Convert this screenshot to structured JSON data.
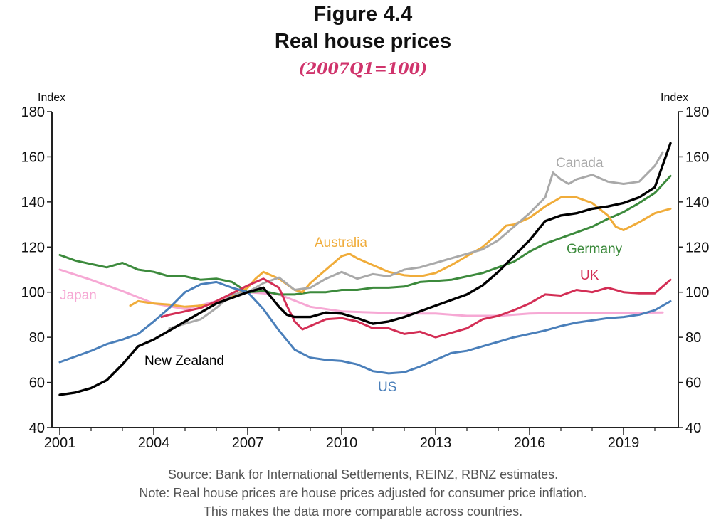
{
  "title": "Figure 4.4",
  "subtitle": "Real house prices",
  "base_note": "(2007Q1=100)",
  "notes": [
    "Source: Bank for International Settlements, REINZ, RBNZ estimates.",
    "Note: Real house prices are house prices adjusted for consumer price inflation.",
    "This makes the data more comparable across countries."
  ],
  "chart_data": {
    "type": "line",
    "ylabel_left": "Index",
    "ylabel_right": "Index",
    "ylim": [
      40,
      180
    ],
    "yticks": [
      40,
      60,
      80,
      100,
      120,
      140,
      160,
      180
    ],
    "xlim": [
      2000.75,
      2020.75
    ],
    "xticks": [
      2001,
      2004,
      2007,
      2010,
      2013,
      2016,
      2019
    ],
    "xtick_labels": [
      "2001",
      "2004",
      "2007",
      "2010",
      "2013",
      "2016",
      "2019"
    ],
    "grid": false,
    "series": [
      {
        "name": "Japan",
        "color": "#f6a8d4",
        "x": [
          2001,
          2002,
          2003,
          2004,
          2005,
          2006,
          2007,
          2008,
          2009,
          2010,
          2011,
          2012,
          2013,
          2014,
          2015,
          2016,
          2017,
          2018,
          2019,
          2020.25
        ],
        "y": [
          110,
          105.5,
          100.5,
          95,
          92.5,
          96,
          100,
          99,
          93.5,
          91.5,
          91,
          90.5,
          90.5,
          89.5,
          89.5,
          90.5,
          90.8,
          90.6,
          90.8,
          91
        ]
      },
      {
        "name": "Germany",
        "color": "#3c8a3c",
        "x": [
          2001,
          2001.5,
          2002,
          2002.5,
          2003,
          2003.5,
          2004,
          2004.5,
          2005,
          2005.5,
          2006,
          2006.5,
          2007,
          2007.5,
          2008,
          2008.5,
          2009,
          2009.5,
          2010,
          2010.5,
          2011,
          2011.5,
          2012,
          2012.5,
          2013,
          2013.5,
          2014,
          2014.5,
          2015,
          2015.5,
          2016,
          2016.5,
          2017,
          2017.5,
          2018,
          2018.5,
          2019,
          2019.5,
          2020,
          2020.5
        ],
        "y": [
          116.5,
          114,
          112.5,
          111,
          113,
          110,
          109,
          107,
          107,
          105.5,
          106,
          104.5,
          100,
          100.5,
          99,
          99,
          100,
          100,
          101,
          101,
          102,
          102,
          102.5,
          104.5,
          105,
          105.5,
          107,
          108.5,
          111,
          113.5,
          118,
          121.5,
          124,
          126.5,
          129,
          132.5,
          135.5,
          139.5,
          144,
          151.5
        ]
      },
      {
        "name": "Australia",
        "color": "#f0ac3a",
        "x": [
          2003.25,
          2003.5,
          2004,
          2004.5,
          2005,
          2005.5,
          2006,
          2006.5,
          2007,
          2007.25,
          2007.5,
          2008,
          2008.5,
          2008.75,
          2009,
          2009.5,
          2010,
          2010.25,
          2010.5,
          2011,
          2011.5,
          2012,
          2012.5,
          2013,
          2013.5,
          2014,
          2014.5,
          2015,
          2015.25,
          2015.5,
          2016,
          2016.5,
          2017,
          2017.5,
          2018,
          2018.5,
          2018.75,
          2019,
          2019.5,
          2020,
          2020.5
        ],
        "y": [
          94,
          96,
          95,
          94.5,
          93.5,
          94,
          95,
          98,
          102,
          106,
          109,
          106,
          101,
          100,
          104,
          110,
          116,
          117,
          115,
          112,
          109,
          107.5,
          107,
          108.5,
          112,
          116,
          120,
          126,
          129.5,
          130,
          133,
          138,
          142,
          142,
          139.5,
          134,
          129,
          127.5,
          131,
          135,
          137
        ]
      },
      {
        "name": "Canada",
        "color": "#a9a9a9",
        "x": [
          2004.5,
          2005,
          2005.5,
          2006,
          2006.5,
          2007,
          2007.5,
          2008,
          2008.5,
          2009,
          2009.5,
          2010,
          2010.5,
          2011,
          2011.5,
          2012,
          2012.5,
          2013,
          2013.5,
          2014,
          2014.5,
          2015,
          2015.5,
          2016,
          2016.5,
          2016.75,
          2017,
          2017.25,
          2017.5,
          2018,
          2018.5,
          2019,
          2019.5,
          2020,
          2020.25
        ],
        "y": [
          84,
          86,
          88,
          93,
          99,
          100,
          104,
          106.5,
          101,
          102,
          106,
          109,
          106,
          108,
          107,
          110,
          111,
          113,
          115,
          117,
          119,
          123,
          129,
          135,
          142,
          153,
          150,
          148,
          150,
          152,
          149,
          148,
          149,
          156,
          162
        ]
      },
      {
        "name": "UK",
        "color": "#d32e55",
        "x": [
          2004.25,
          2004.5,
          2005,
          2005.5,
          2006,
          2006.5,
          2007,
          2007.5,
          2008,
          2008.25,
          2008.5,
          2008.75,
          2009,
          2009.5,
          2010,
          2010.5,
          2011,
          2011.5,
          2012,
          2012.5,
          2013,
          2013.5,
          2014,
          2014.5,
          2015,
          2015.5,
          2016,
          2016.5,
          2017,
          2017.5,
          2018,
          2018.5,
          2019,
          2019.5,
          2020,
          2020.5
        ],
        "y": [
          89,
          90,
          91.5,
          93,
          96,
          99.5,
          103,
          106,
          102,
          94,
          87,
          83.5,
          85,
          88,
          88.5,
          87,
          84,
          84,
          81.5,
          82.5,
          80,
          82,
          84,
          88,
          89.5,
          92,
          95,
          99,
          98.5,
          101,
          100,
          102,
          100,
          99.5,
          99.5,
          105.5
        ]
      },
      {
        "name": "US",
        "color": "#4a7fba",
        "x": [
          2001,
          2001.5,
          2002,
          2002.5,
          2003,
          2003.5,
          2004,
          2004.5,
          2005,
          2005.5,
          2006,
          2006.5,
          2007,
          2007.5,
          2008,
          2008.5,
          2009,
          2009.5,
          2010,
          2010.5,
          2011,
          2011.5,
          2012,
          2012.5,
          2013,
          2013.5,
          2014,
          2014.5,
          2015,
          2015.5,
          2016,
          2016.5,
          2017,
          2017.5,
          2018,
          2018.5,
          2019,
          2019.5,
          2020,
          2020.5
        ],
        "y": [
          69,
          71.5,
          74,
          77,
          79,
          81.5,
          87,
          93,
          100,
          103.5,
          104.5,
          102,
          100,
          92.5,
          83,
          74.5,
          71,
          70,
          69.5,
          68,
          65,
          64,
          64.5,
          67,
          70,
          73,
          74,
          76,
          78,
          80,
          81.5,
          83,
          85,
          86.5,
          87.5,
          88.5,
          89,
          90,
          92,
          96
        ]
      },
      {
        "name": "New Zealand",
        "color": "#000000",
        "x": [
          2001,
          2001.5,
          2002,
          2002.5,
          2003,
          2003.5,
          2004,
          2004.5,
          2005,
          2005.5,
          2006,
          2006.5,
          2007,
          2007.5,
          2008,
          2008.25,
          2008.5,
          2009,
          2009.5,
          2010,
          2010.5,
          2011,
          2011.5,
          2012,
          2012.5,
          2013,
          2013.5,
          2014,
          2014.5,
          2015,
          2015.5,
          2016,
          2016.5,
          2017,
          2017.5,
          2018,
          2018.5,
          2019,
          2019.5,
          2020,
          2020.5
        ],
        "y": [
          54.5,
          55.5,
          57.5,
          61,
          68,
          76,
          79,
          83,
          87,
          91,
          95,
          97.5,
          100,
          102,
          93.5,
          90,
          89,
          89,
          91,
          90.5,
          88.5,
          86,
          87,
          89,
          91.5,
          94,
          96.5,
          99,
          103,
          109,
          116,
          123,
          131.5,
          134,
          135,
          137,
          138,
          139.5,
          142,
          146.5,
          166
        ]
      }
    ],
    "annotations": [
      {
        "text": "Japan",
        "series": "Japan"
      },
      {
        "text": "Australia",
        "series": "Australia"
      },
      {
        "text": "Canada",
        "series": "Canada"
      },
      {
        "text": "Germany",
        "series": "Germany"
      },
      {
        "text": "UK",
        "series": "UK"
      },
      {
        "text": "New Zealand",
        "series": "New Zealand"
      },
      {
        "text": "US",
        "series": "US"
      }
    ]
  }
}
